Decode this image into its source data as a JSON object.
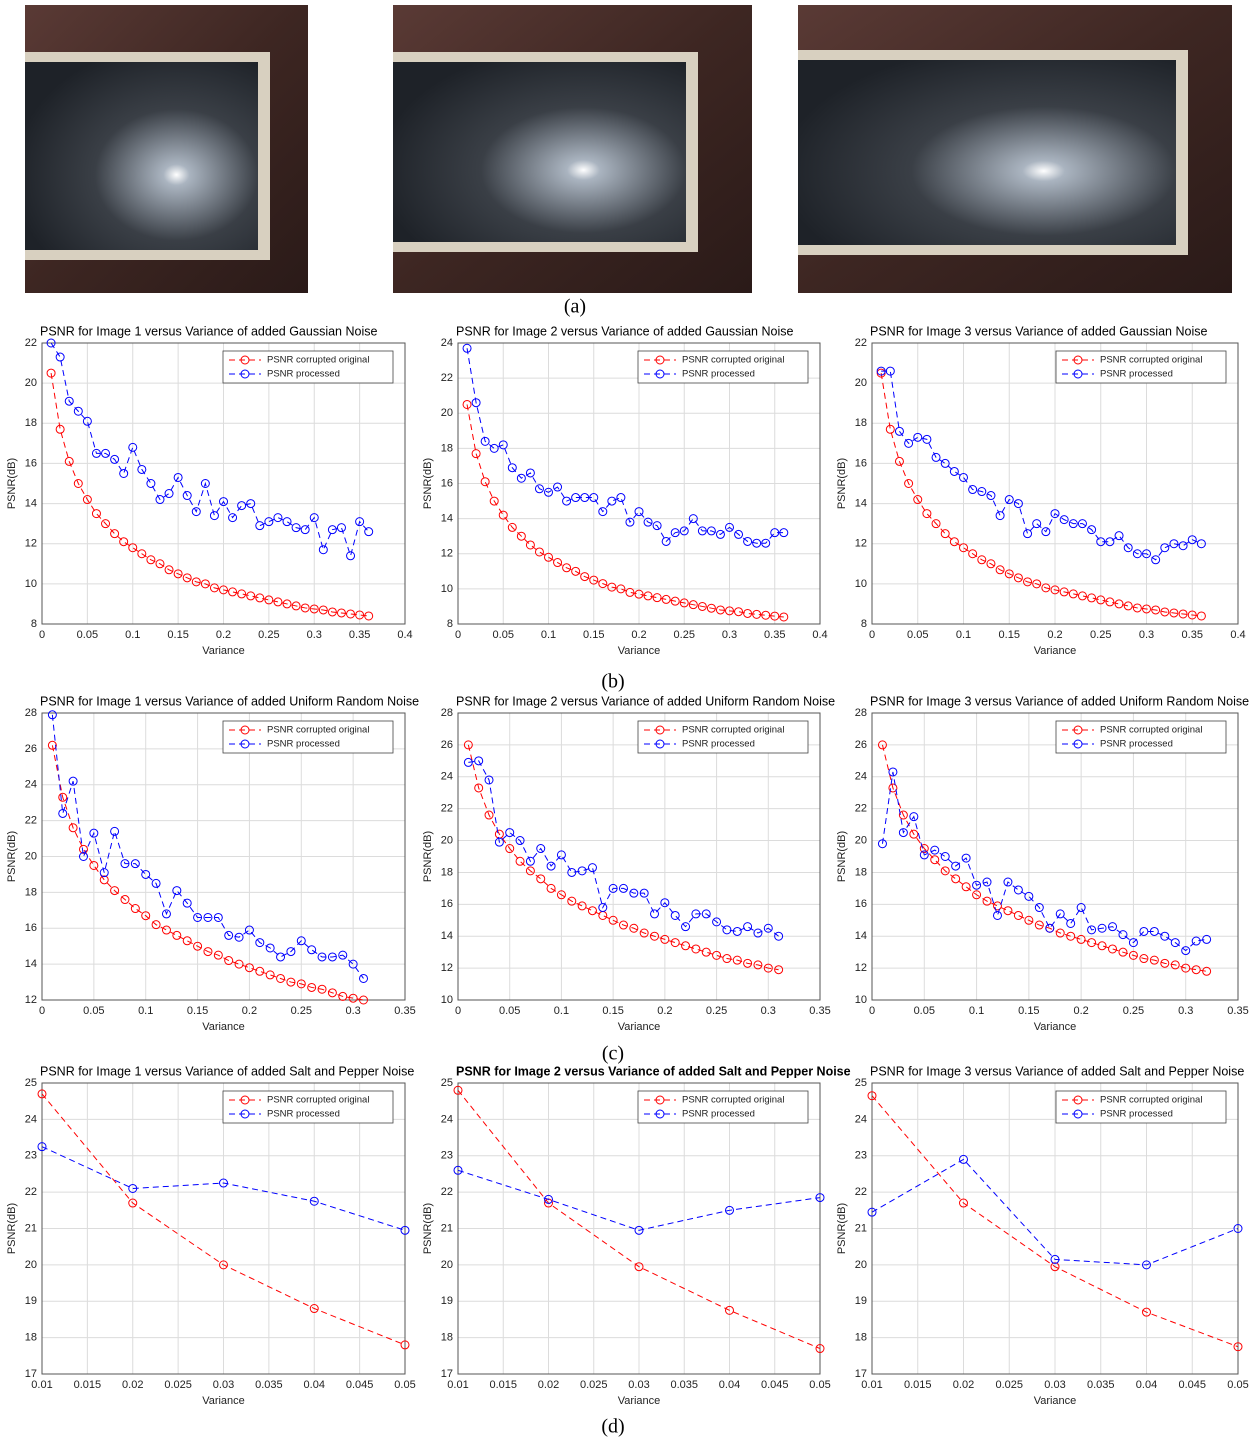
{
  "panel_labels": [
    "(a)",
    "(b)",
    "(c)",
    "(d)"
  ],
  "chart_data": [
    {
      "type": "line",
      "title": "PSNR for Image 1 versus Variance of added Gaussian Noise",
      "xlabel": "Variance",
      "ylabel": "PSNR(dB)",
      "grid": true,
      "legend": "upper right",
      "x": [
        0.01,
        0.02,
        0.03,
        0.04,
        0.05,
        0.06,
        0.07,
        0.08,
        0.09,
        0.1,
        0.11,
        0.12,
        0.13,
        0.14,
        0.15,
        0.16,
        0.17,
        0.18,
        0.19,
        0.2,
        0.21,
        0.22,
        0.23,
        0.24,
        0.25,
        0.26,
        0.27,
        0.28,
        0.29,
        0.3,
        0.31,
        0.32,
        0.33,
        0.34,
        0.35,
        0.36
      ],
      "xlim": [
        0,
        0.4
      ],
      "xticks": [
        0,
        0.05,
        0.1,
        0.15,
        0.2,
        0.25,
        0.3,
        0.35,
        0.4
      ],
      "ylim": [
        8,
        22
      ],
      "yticks": [
        8,
        10,
        12,
        14,
        16,
        18,
        20,
        22
      ],
      "series": [
        {
          "name": "PSNR corrupted original",
          "color": "#ff0000",
          "values": [
            20.5,
            17.7,
            16.1,
            15.0,
            14.2,
            13.5,
            13.0,
            12.5,
            12.1,
            11.8,
            11.5,
            11.2,
            11.0,
            10.7,
            10.5,
            10.3,
            10.1,
            10.0,
            9.8,
            9.7,
            9.6,
            9.5,
            9.4,
            9.3,
            9.2,
            9.1,
            9.0,
            8.9,
            8.8,
            8.75,
            8.7,
            8.6,
            8.55,
            8.5,
            8.45,
            8.4
          ]
        },
        {
          "name": "PSNR processed",
          "color": "#0000ff",
          "values": [
            22.0,
            21.3,
            19.1,
            18.6,
            18.1,
            16.5,
            16.5,
            16.2,
            15.5,
            16.8,
            15.7,
            15.0,
            14.2,
            14.5,
            15.3,
            14.4,
            13.6,
            15.0,
            13.4,
            14.1,
            13.3,
            13.9,
            14.0,
            12.9,
            13.1,
            13.3,
            13.1,
            12.8,
            12.7,
            13.3,
            11.7,
            12.7,
            12.8,
            11.4,
            13.1,
            12.6
          ]
        }
      ]
    },
    {
      "type": "line",
      "title": "PSNR for Image 2 versus Variance of added Gaussian Noise",
      "xlabel": "Variance",
      "ylabel": "PSNR(dB)",
      "grid": true,
      "legend": "upper right",
      "x": [
        0.01,
        0.02,
        0.03,
        0.04,
        0.05,
        0.06,
        0.07,
        0.08,
        0.09,
        0.1,
        0.11,
        0.12,
        0.13,
        0.14,
        0.15,
        0.16,
        0.17,
        0.18,
        0.19,
        0.2,
        0.21,
        0.22,
        0.23,
        0.24,
        0.25,
        0.26,
        0.27,
        0.28,
        0.29,
        0.3,
        0.31,
        0.32,
        0.33,
        0.34,
        0.35,
        0.36
      ],
      "xlim": [
        0,
        0.4
      ],
      "xticks": [
        0,
        0.05,
        0.1,
        0.15,
        0.2,
        0.25,
        0.3,
        0.35,
        0.4
      ],
      "ylim": [
        8,
        24
      ],
      "yticks": [
        8,
        10,
        12,
        14,
        16,
        18,
        20,
        22,
        24
      ],
      "series": [
        {
          "name": "PSNR corrupted original",
          "color": "#ff0000",
          "values": [
            20.5,
            17.7,
            16.1,
            15.0,
            14.2,
            13.5,
            13.0,
            12.5,
            12.1,
            11.8,
            11.5,
            11.2,
            11.0,
            10.7,
            10.5,
            10.3,
            10.1,
            10.0,
            9.8,
            9.7,
            9.6,
            9.5,
            9.4,
            9.3,
            9.2,
            9.1,
            9.0,
            8.9,
            8.8,
            8.75,
            8.7,
            8.6,
            8.55,
            8.5,
            8.45,
            8.4
          ]
        },
        {
          "name": "PSNR processed",
          "color": "#0000ff",
          "values": [
            23.7,
            20.6,
            18.4,
            18.0,
            18.2,
            16.9,
            16.3,
            16.6,
            15.7,
            15.5,
            15.8,
            15.0,
            15.2,
            15.2,
            15.2,
            14.4,
            15.0,
            15.2,
            13.8,
            14.4,
            13.8,
            13.6,
            12.7,
            13.2,
            13.3,
            14.0,
            13.3,
            13.3,
            13.1,
            13.5,
            13.1,
            12.7,
            12.6,
            12.6,
            13.2,
            13.2
          ]
        }
      ]
    },
    {
      "type": "line",
      "title": "PSNR for Image 3 versus Variance of added Gaussian Noise",
      "xlabel": "Variance",
      "ylabel": "PSNR(dB)",
      "grid": true,
      "legend": "upper right",
      "x": [
        0.01,
        0.02,
        0.03,
        0.04,
        0.05,
        0.06,
        0.07,
        0.08,
        0.09,
        0.1,
        0.11,
        0.12,
        0.13,
        0.14,
        0.15,
        0.16,
        0.17,
        0.18,
        0.19,
        0.2,
        0.21,
        0.22,
        0.23,
        0.24,
        0.25,
        0.26,
        0.27,
        0.28,
        0.29,
        0.3,
        0.31,
        0.32,
        0.33,
        0.34,
        0.35,
        0.36
      ],
      "xlim": [
        0,
        0.4
      ],
      "xticks": [
        0,
        0.05,
        0.1,
        0.15,
        0.2,
        0.25,
        0.3,
        0.35,
        0.4
      ],
      "ylim": [
        8,
        22
      ],
      "yticks": [
        8,
        10,
        12,
        14,
        16,
        18,
        20,
        22
      ],
      "series": [
        {
          "name": "PSNR corrupted original",
          "color": "#ff0000",
          "values": [
            20.5,
            17.7,
            16.1,
            15.0,
            14.2,
            13.5,
            13.0,
            12.5,
            12.1,
            11.8,
            11.5,
            11.2,
            11.0,
            10.7,
            10.5,
            10.3,
            10.1,
            10.0,
            9.8,
            9.7,
            9.6,
            9.5,
            9.4,
            9.3,
            9.2,
            9.1,
            9.0,
            8.9,
            8.8,
            8.75,
            8.7,
            8.6,
            8.55,
            8.5,
            8.45,
            8.4
          ]
        },
        {
          "name": "PSNR processed",
          "color": "#0000ff",
          "values": [
            20.6,
            20.6,
            17.6,
            17.0,
            17.3,
            17.2,
            16.3,
            16.0,
            15.6,
            15.3,
            14.7,
            14.6,
            14.4,
            13.4,
            14.2,
            14.0,
            12.5,
            13.0,
            12.6,
            13.5,
            13.2,
            13.0,
            13.0,
            12.7,
            12.1,
            12.1,
            12.4,
            11.8,
            11.5,
            11.5,
            11.2,
            11.8,
            12.0,
            11.9,
            12.2,
            12.0
          ]
        }
      ]
    },
    {
      "type": "line",
      "title": "PSNR for Image 1 versus Variance of added Uniform Random Noise",
      "xlabel": "Variance",
      "ylabel": "PSNR(dB)",
      "grid": true,
      "legend": "upper right",
      "x": [
        0.01,
        0.02,
        0.03,
        0.04,
        0.05,
        0.06,
        0.07,
        0.08,
        0.09,
        0.1,
        0.11,
        0.12,
        0.13,
        0.14,
        0.15,
        0.16,
        0.17,
        0.18,
        0.19,
        0.2,
        0.21,
        0.22,
        0.23,
        0.24,
        0.25,
        0.26,
        0.27,
        0.28,
        0.29,
        0.3,
        0.31
      ],
      "xlim": [
        0,
        0.35
      ],
      "xticks": [
        0,
        0.05,
        0.1,
        0.15,
        0.2,
        0.25,
        0.3,
        0.35
      ],
      "ylim": [
        12,
        28
      ],
      "yticks": [
        12,
        14,
        16,
        18,
        20,
        22,
        24,
        26,
        28
      ],
      "series": [
        {
          "name": "PSNR corrupted original",
          "color": "#ff0000",
          "values": [
            26.2,
            23.3,
            21.6,
            20.4,
            19.5,
            18.7,
            18.1,
            17.6,
            17.1,
            16.7,
            16.2,
            15.9,
            15.6,
            15.3,
            15.0,
            14.7,
            14.5,
            14.2,
            14.0,
            13.8,
            13.6,
            13.4,
            13.2,
            13.0,
            12.9,
            12.7,
            12.6,
            12.4,
            12.2,
            12.1,
            12.0
          ]
        },
        {
          "name": "PSNR processed",
          "color": "#0000ff",
          "values": [
            27.9,
            22.4,
            24.2,
            20.0,
            21.3,
            19.1,
            21.4,
            19.6,
            19.6,
            19.0,
            18.5,
            16.8,
            18.1,
            17.4,
            16.6,
            16.6,
            16.6,
            15.6,
            15.5,
            15.9,
            15.2,
            14.9,
            14.4,
            14.7,
            15.3,
            14.8,
            14.4,
            14.4,
            14.5,
            14.0,
            13.2
          ]
        }
      ]
    },
    {
      "type": "line",
      "title": "PSNR for Image 2 versus Variance of added Uniform Random Noise",
      "xlabel": "Variance",
      "ylabel": "PSNR(dB)",
      "grid": true,
      "legend": "upper right",
      "x": [
        0.01,
        0.02,
        0.03,
        0.04,
        0.05,
        0.06,
        0.07,
        0.08,
        0.09,
        0.1,
        0.11,
        0.12,
        0.13,
        0.14,
        0.15,
        0.16,
        0.17,
        0.18,
        0.19,
        0.2,
        0.21,
        0.22,
        0.23,
        0.24,
        0.25,
        0.26,
        0.27,
        0.28,
        0.29,
        0.3,
        0.31
      ],
      "xlim": [
        0,
        0.35
      ],
      "xticks": [
        0,
        0.05,
        0.1,
        0.15,
        0.2,
        0.25,
        0.3,
        0.35
      ],
      "ylim": [
        10,
        28
      ],
      "yticks": [
        10,
        12,
        14,
        16,
        18,
        20,
        22,
        24,
        26,
        28
      ],
      "series": [
        {
          "name": "PSNR corrupted original",
          "color": "#ff0000",
          "values": [
            26.0,
            23.3,
            21.6,
            20.4,
            19.5,
            18.7,
            18.1,
            17.6,
            17.0,
            16.6,
            16.2,
            15.9,
            15.6,
            15.3,
            15.0,
            14.7,
            14.5,
            14.2,
            14.0,
            13.8,
            13.6,
            13.4,
            13.2,
            13.0,
            12.8,
            12.6,
            12.5,
            12.3,
            12.2,
            12.0,
            11.9
          ]
        },
        {
          "name": "PSNR processed",
          "color": "#0000ff",
          "values": [
            24.9,
            25.0,
            23.8,
            19.9,
            20.5,
            20.0,
            18.7,
            19.5,
            18.4,
            19.1,
            18.0,
            18.1,
            18.3,
            15.8,
            17.0,
            17.0,
            16.7,
            16.7,
            15.4,
            16.1,
            15.3,
            14.6,
            15.4,
            15.4,
            14.9,
            14.4,
            14.3,
            14.6,
            14.2,
            14.5,
            14.0
          ]
        }
      ]
    },
    {
      "type": "line",
      "title": "PSNR for Image 3 versus Variance of added Uniform Random Noise",
      "xlabel": "Variance",
      "ylabel": "PSNR(dB)",
      "grid": true,
      "legend": "upper right",
      "x": [
        0.01,
        0.02,
        0.03,
        0.04,
        0.05,
        0.06,
        0.07,
        0.08,
        0.09,
        0.1,
        0.11,
        0.12,
        0.13,
        0.14,
        0.15,
        0.16,
        0.17,
        0.18,
        0.19,
        0.2,
        0.21,
        0.22,
        0.23,
        0.24,
        0.25,
        0.26,
        0.27,
        0.28,
        0.29,
        0.3,
        0.31,
        0.32
      ],
      "xlim": [
        0,
        0.35
      ],
      "xticks": [
        0,
        0.05,
        0.1,
        0.15,
        0.2,
        0.25,
        0.3,
        0.35
      ],
      "ylim": [
        10,
        28
      ],
      "yticks": [
        10,
        12,
        14,
        16,
        18,
        20,
        22,
        24,
        26,
        28
      ],
      "series": [
        {
          "name": "PSNR corrupted original",
          "color": "#ff0000",
          "values": [
            26.0,
            23.3,
            21.6,
            20.4,
            19.5,
            18.8,
            18.1,
            17.6,
            17.1,
            16.6,
            16.2,
            15.9,
            15.6,
            15.3,
            15.0,
            14.7,
            14.5,
            14.2,
            14.0,
            13.8,
            13.6,
            13.4,
            13.2,
            13.0,
            12.8,
            12.6,
            12.5,
            12.3,
            12.2,
            12.0,
            11.9,
            11.8
          ]
        },
        {
          "name": "PSNR processed",
          "color": "#0000ff",
          "values": [
            19.8,
            24.3,
            20.5,
            21.5,
            19.1,
            19.4,
            19.0,
            18.4,
            18.9,
            17.2,
            17.4,
            15.3,
            17.4,
            16.9,
            16.5,
            15.8,
            14.5,
            15.4,
            14.8,
            15.8,
            14.4,
            14.5,
            14.6,
            14.1,
            13.6,
            14.3,
            14.3,
            14.0,
            13.6,
            13.1,
            13.7,
            13.8
          ]
        }
      ]
    },
    {
      "type": "line",
      "title": "PSNR for Image 1 versus Variance of added Salt and Pepper Noise",
      "xlabel": "Variance",
      "ylabel": "PSNR(dB)",
      "grid": true,
      "legend": "upper right",
      "x": [
        0.01,
        0.02,
        0.03,
        0.04,
        0.05
      ],
      "xlim": [
        0.01,
        0.05
      ],
      "xticks": [
        0.01,
        0.015,
        0.02,
        0.025,
        0.03,
        0.035,
        0.04,
        0.045,
        0.05
      ],
      "ylim": [
        17,
        25
      ],
      "yticks": [
        17,
        18,
        19,
        20,
        21,
        22,
        23,
        24,
        25
      ],
      "series": [
        {
          "name": "PSNR corrupted original",
          "color": "#ff0000",
          "values": [
            24.7,
            21.7,
            20.0,
            18.8,
            17.8
          ]
        },
        {
          "name": "PSNR processed",
          "color": "#0000ff",
          "values": [
            23.25,
            22.1,
            22.25,
            21.75,
            20.95
          ]
        }
      ]
    },
    {
      "type": "line",
      "title": "PSNR for Image 2 versus Variance of added Salt and Pepper Noise",
      "xlabel": "Variance",
      "ylabel": "PSNR(dB)",
      "grid": true,
      "legend": "upper right",
      "x": [
        0.01,
        0.02,
        0.03,
        0.04,
        0.05
      ],
      "xlim": [
        0.01,
        0.05
      ],
      "xticks": [
        0.01,
        0.015,
        0.02,
        0.025,
        0.03,
        0.035,
        0.04,
        0.045,
        0.05
      ],
      "ylim": [
        17,
        25
      ],
      "yticks": [
        17,
        18,
        19,
        20,
        21,
        22,
        23,
        24,
        25
      ],
      "series": [
        {
          "name": "PSNR corrupted original",
          "color": "#ff0000",
          "values": [
            24.8,
            21.7,
            19.95,
            18.75,
            17.7
          ]
        },
        {
          "name": "PSNR processed",
          "color": "#0000ff",
          "values": [
            22.6,
            21.8,
            20.95,
            21.5,
            21.85
          ]
        }
      ]
    },
    {
      "type": "line",
      "title": "PSNR for Image 3 versus Variance of added Salt and Pepper Noise",
      "xlabel": "Variance",
      "ylabel": "PSNR(dB)",
      "grid": true,
      "legend": "upper right",
      "x": [
        0.01,
        0.02,
        0.03,
        0.04,
        0.05
      ],
      "xlim": [
        0.01,
        0.05
      ],
      "xticks": [
        0.01,
        0.015,
        0.02,
        0.025,
        0.03,
        0.035,
        0.04,
        0.045,
        0.05
      ],
      "ylim": [
        17,
        25
      ],
      "yticks": [
        17,
        18,
        19,
        20,
        21,
        22,
        23,
        24,
        25
      ],
      "series": [
        {
          "name": "PSNR corrupted original",
          "color": "#ff0000",
          "values": [
            24.65,
            21.7,
            19.95,
            18.7,
            17.75
          ]
        },
        {
          "name": "PSNR processed",
          "color": "#0000ff",
          "values": [
            21.45,
            22.9,
            20.15,
            20.0,
            21.0
          ]
        }
      ]
    }
  ]
}
